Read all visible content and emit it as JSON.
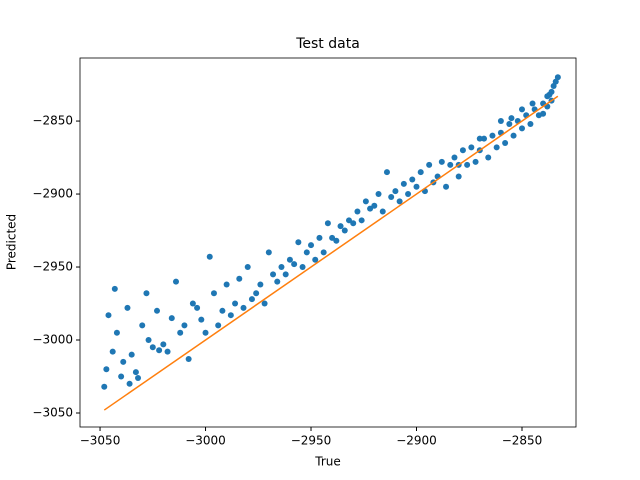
{
  "chart_data": {
    "type": "scatter",
    "title": "Test data",
    "x_label": "True",
    "y_label": "Predicted",
    "xlim": [
      -3059.5,
      -2824.4
    ],
    "ylim": [
      -3059.6,
      -2806.8
    ],
    "xticks": [
      {
        "value": -3050,
        "label": "−3050"
      },
      {
        "value": -3000,
        "label": "−3000"
      },
      {
        "value": -2950,
        "label": "−2950"
      },
      {
        "value": -2900,
        "label": "−2900"
      },
      {
        "value": -2850,
        "label": "−2850"
      }
    ],
    "yticks": [
      {
        "value": -3050,
        "label": "−3050"
      },
      {
        "value": -3000,
        "label": "−3000"
      },
      {
        "value": -2950,
        "label": "−2950"
      },
      {
        "value": -2900,
        "label": "−2900"
      },
      {
        "value": -2850,
        "label": "−2850"
      }
    ],
    "series": [
      {
        "type": "scatter",
        "color": "#1f77b4",
        "x": [
          -3048,
          -3047,
          -3046,
          -3044,
          -3043,
          -3042,
          -3040,
          -3039,
          -3037,
          -3036,
          -3035,
          -3033,
          -3032,
          -3030,
          -3028,
          -3027,
          -3025,
          -3023,
          -3022,
          -3020,
          -3018,
          -3016,
          -3014,
          -3012,
          -3010,
          -3008,
          -3006,
          -3004,
          -3002,
          -3000,
          -2998,
          -2996,
          -2994,
          -2992,
          -2990,
          -2988,
          -2986,
          -2984,
          -2982,
          -2980,
          -2978,
          -2976,
          -2974,
          -2972,
          -2970,
          -2968,
          -2966,
          -2964,
          -2962,
          -2960,
          -2958,
          -2956,
          -2954,
          -2952,
          -2950,
          -2948,
          -2946,
          -2944,
          -2942,
          -2940,
          -2938,
          -2936,
          -2934,
          -2932,
          -2930,
          -2928,
          -2926,
          -2924,
          -2922,
          -2920,
          -2918,
          -2916,
          -2914,
          -2912,
          -2910,
          -2908,
          -2906,
          -2904,
          -2902,
          -2900,
          -2898,
          -2896,
          -2894,
          -2892,
          -2890,
          -2888,
          -2886,
          -2884,
          -2882,
          -2880,
          -2878,
          -2876,
          -2874,
          -2872,
          -2870,
          -2868,
          -2866,
          -2864,
          -2862,
          -2860,
          -2858,
          -2856,
          -2854,
          -2852,
          -2850,
          -2848,
          -2846,
          -2844,
          -2842,
          -2840,
          -2838,
          -2837,
          -2836,
          -2835,
          -2834,
          -2833,
          -2836,
          -2838,
          -2840,
          -2845,
          -2850,
          -2855,
          -2860,
          -2870,
          -2880
        ],
        "y": [
          -3032,
          -3020,
          -2983,
          -3008,
          -2965,
          -2995,
          -3025,
          -3015,
          -2978,
          -3030,
          -3010,
          -3022,
          -3026,
          -2990,
          -2968,
          -3000,
          -3005,
          -2980,
          -3007,
          -3003,
          -3008,
          -2985,
          -2960,
          -2995,
          -2990,
          -3013,
          -2975,
          -2978,
          -2986,
          -2995,
          -2943,
          -2968,
          -2990,
          -2980,
          -2962,
          -2983,
          -2975,
          -2958,
          -2978,
          -2950,
          -2972,
          -2968,
          -2962,
          -2975,
          -2940,
          -2955,
          -2960,
          -2950,
          -2955,
          -2945,
          -2948,
          -2933,
          -2950,
          -2940,
          -2935,
          -2945,
          -2930,
          -2940,
          -2920,
          -2930,
          -2932,
          -2922,
          -2925,
          -2918,
          -2920,
          -2912,
          -2918,
          -2905,
          -2910,
          -2908,
          -2900,
          -2912,
          -2885,
          -2902,
          -2898,
          -2905,
          -2893,
          -2900,
          -2890,
          -2895,
          -2885,
          -2898,
          -2880,
          -2892,
          -2888,
          -2878,
          -2895,
          -2880,
          -2875,
          -2888,
          -2870,
          -2880,
          -2868,
          -2878,
          -2870,
          -2862,
          -2875,
          -2860,
          -2868,
          -2858,
          -2865,
          -2852,
          -2860,
          -2850,
          -2855,
          -2846,
          -2852,
          -2842,
          -2846,
          -2838,
          -2840,
          -2832,
          -2830,
          -2826,
          -2823,
          -2820,
          -2836,
          -2833,
          -2845,
          -2838,
          -2842,
          -2848,
          -2850,
          -2862,
          -2880
        ]
      },
      {
        "type": "line",
        "color": "#ff7f0e",
        "x": [
          -3048,
          -2833
        ],
        "y": [
          -3048,
          -2833
        ]
      }
    ]
  }
}
